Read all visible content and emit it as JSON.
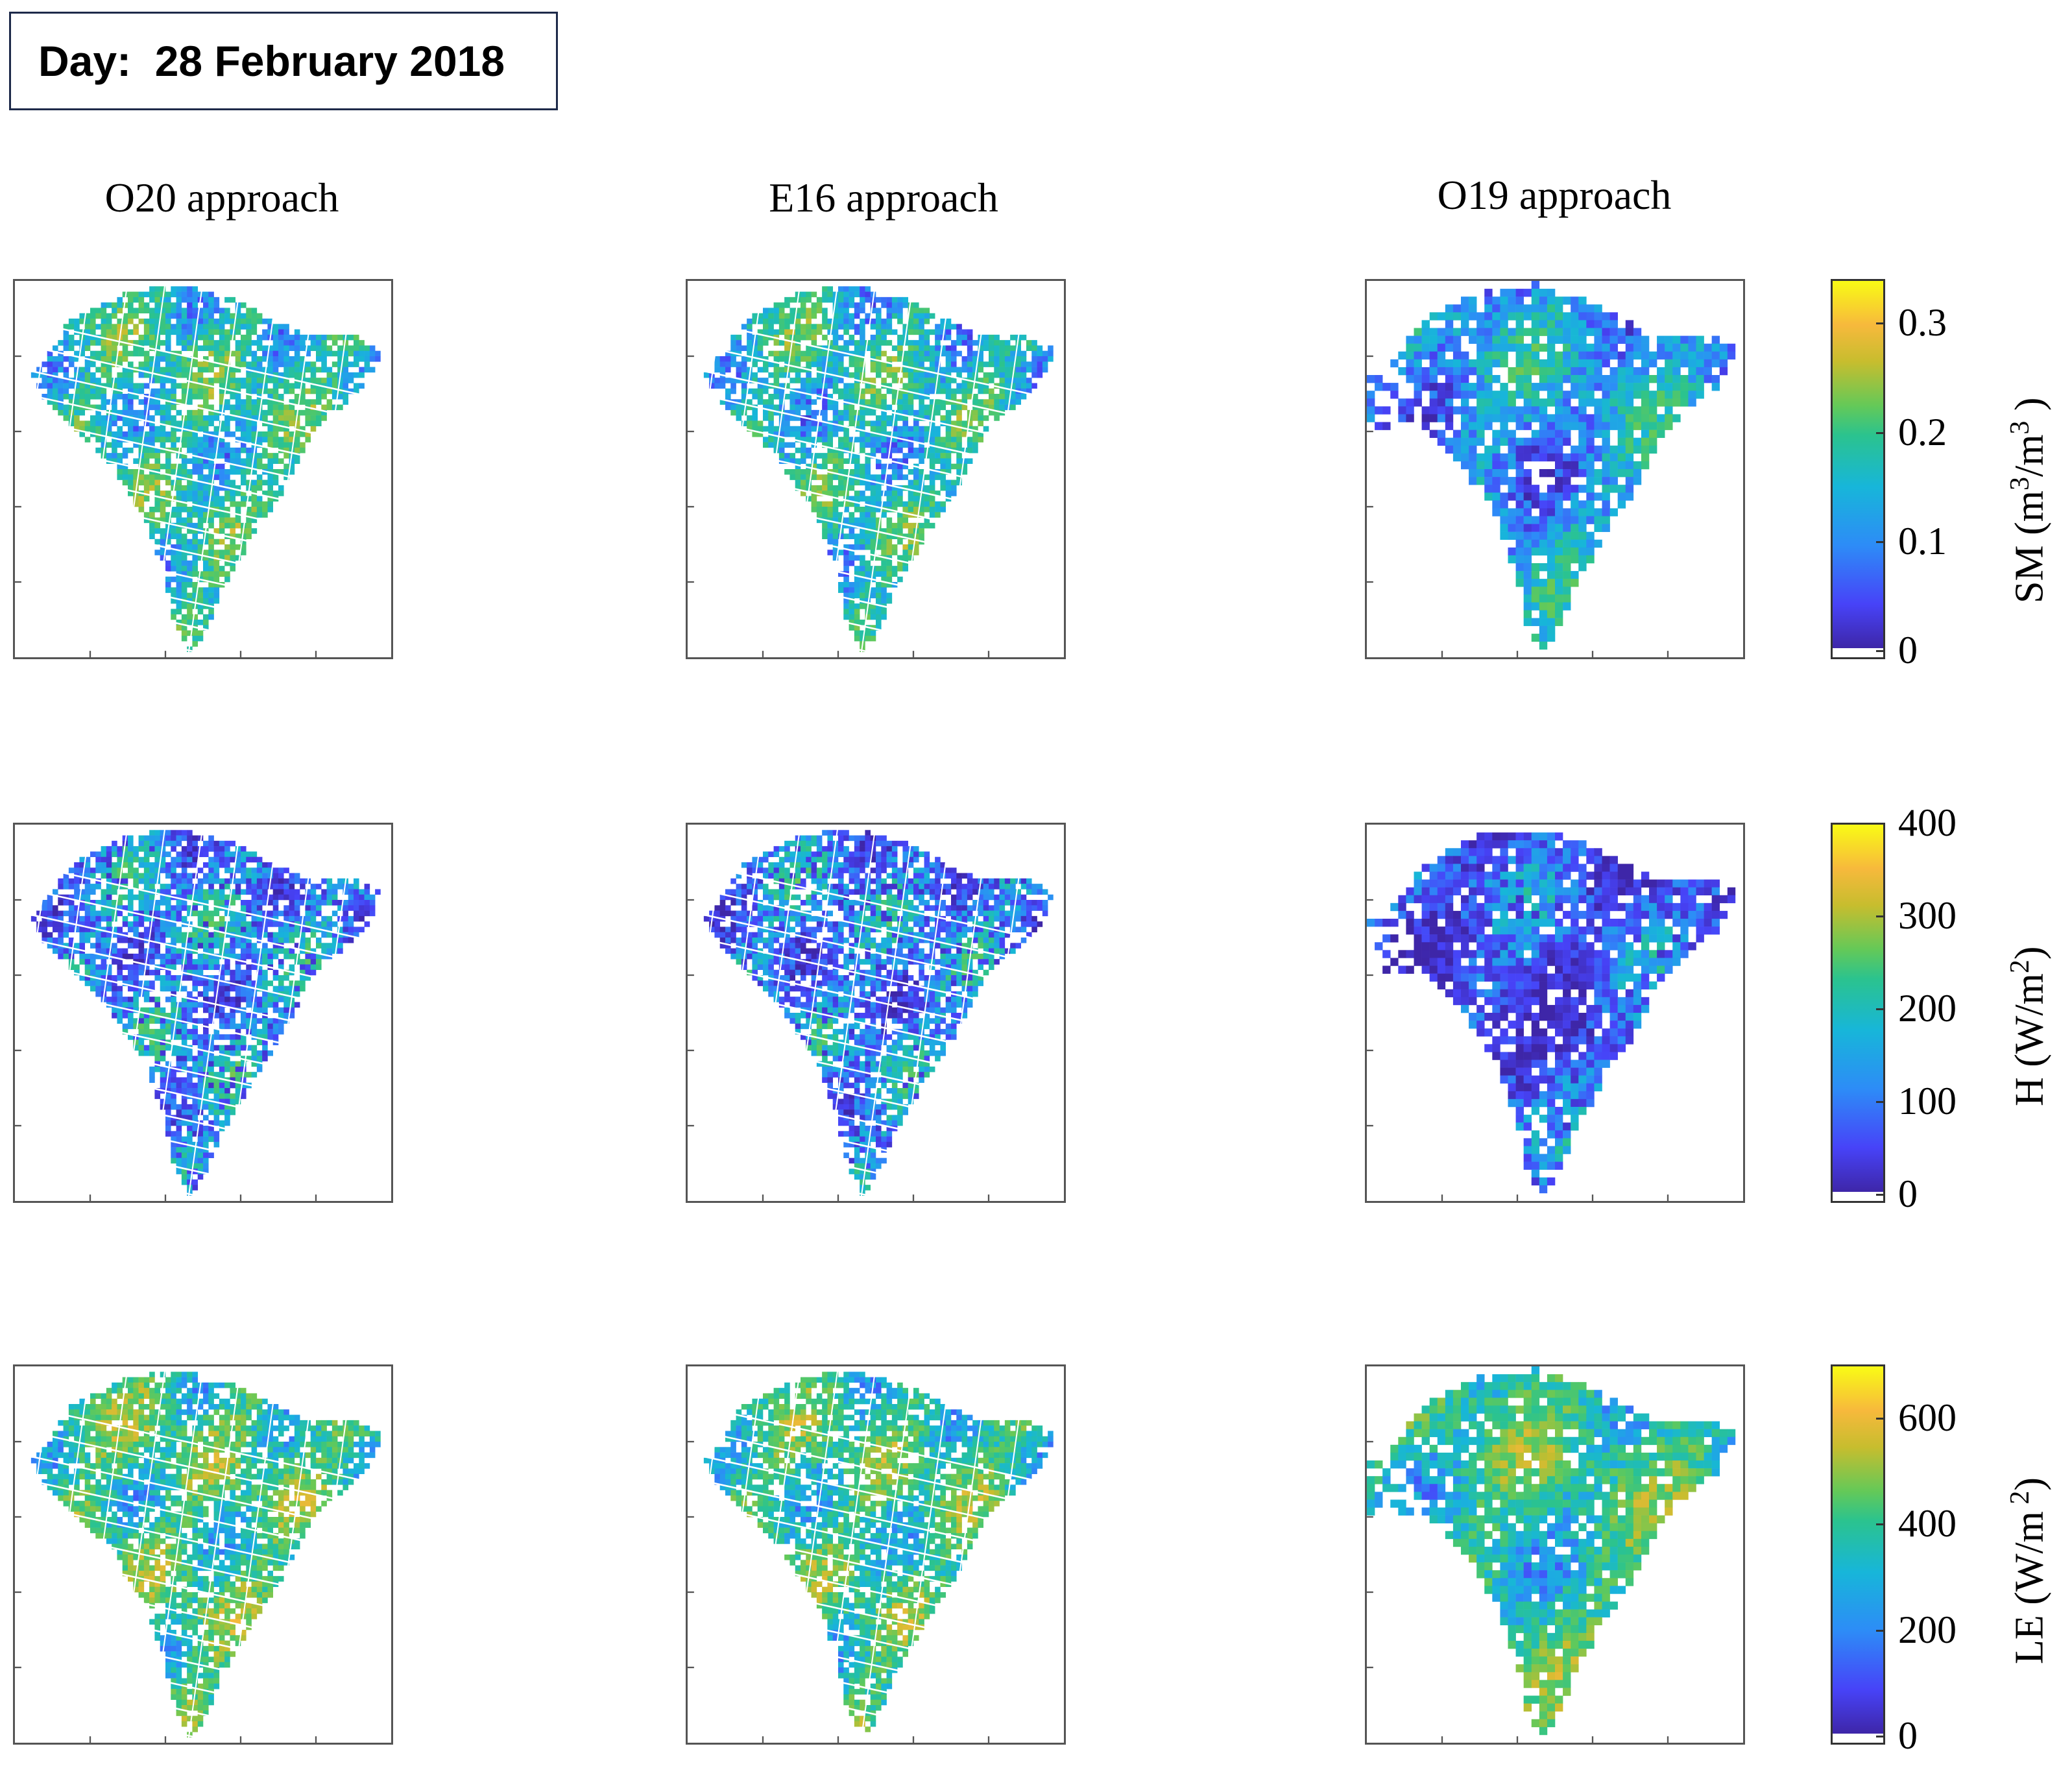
{
  "header": {
    "day_label": "Day:  28 February 2018"
  },
  "columns": [
    {
      "title": "O20 approach"
    },
    {
      "title": "E16 approach"
    },
    {
      "title": "O19 approach"
    }
  ],
  "rows": [
    {
      "variable": "SM",
      "label_main": "SM  (m",
      "label_sup1": "3",
      "label_mid": "/m",
      "label_sup2": "3",
      "label_end": " )",
      "ticks": [
        "0.3",
        "0.2",
        "0.1",
        "0"
      ],
      "tick_values": [
        0.3,
        0.2,
        0.1,
        0
      ],
      "range": [
        0,
        0.34
      ]
    },
    {
      "variable": "H",
      "label_main": "H (W/m",
      "label_sup1": "2",
      "label_mid": "",
      "label_sup2": "",
      "label_end": ")",
      "ticks": [
        "400",
        "300",
        "200",
        "100",
        "0"
      ],
      "tick_values": [
        400,
        300,
        200,
        100,
        0
      ],
      "range": [
        0,
        400
      ]
    },
    {
      "variable": "LE",
      "label_main": "LE (W/m",
      "label_sup1": " 2",
      "label_mid": "",
      "label_sup2": "",
      "label_end": ")",
      "ticks": [
        "600",
        "400",
        "200",
        "0"
      ],
      "tick_values": [
        600,
        400,
        200,
        0
      ],
      "range": [
        0,
        700
      ]
    }
  ],
  "colormap": {
    "low": "#3e26a8",
    "mid": "#17b6d9",
    "high": "#f9fb15",
    "stops": [
      "#3e26a8",
      "#4743f8",
      "#2d8cf7",
      "#17b6d9",
      "#2bc38e",
      "#64c958",
      "#c7bd2e",
      "#f7b93c",
      "#f9fb15"
    ]
  },
  "panel_levels": [
    [
      0.45,
      0.42,
      0.3
    ],
    [
      0.3,
      0.28,
      0.16
    ],
    [
      0.52,
      0.5,
      0.48
    ]
  ]
}
